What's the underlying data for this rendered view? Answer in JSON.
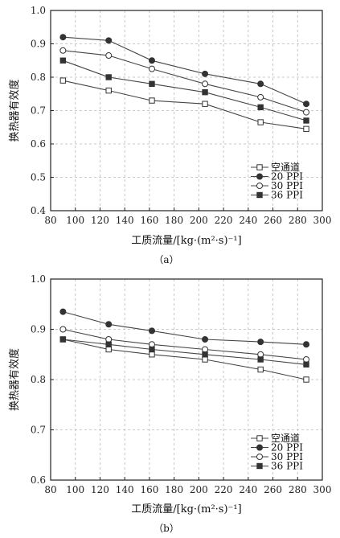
{
  "chart_data": [
    {
      "type": "line",
      "caption": "（a）",
      "xlabel": "工质流量/[kg·(m²·s)⁻¹]",
      "ylabel": "换热器有效度",
      "xlim": [
        80,
        300
      ],
      "ylim": [
        0.4,
        1.0
      ],
      "xticks": [
        80,
        100,
        120,
        140,
        160,
        180,
        200,
        220,
        240,
        260,
        280,
        300
      ],
      "yticks": [
        0.4,
        0.5,
        0.6,
        0.7,
        0.8,
        0.9,
        1.0
      ],
      "grid": true,
      "legend_position": "lower-right",
      "x": [
        90,
        127,
        162,
        205,
        250,
        287
      ],
      "series": [
        {
          "name": "空通道",
          "marker": "open-square",
          "values": [
            0.79,
            0.76,
            0.73,
            0.72,
            0.665,
            0.645
          ]
        },
        {
          "name": "20 PPI",
          "marker": "filled-circle",
          "values": [
            0.92,
            0.91,
            0.85,
            0.81,
            0.78,
            0.72
          ]
        },
        {
          "name": "30 PPI",
          "marker": "open-circle",
          "values": [
            0.88,
            0.865,
            0.825,
            0.78,
            0.74,
            0.695
          ]
        },
        {
          "name": "36 PPI",
          "marker": "filled-square",
          "values": [
            0.85,
            0.8,
            0.78,
            0.755,
            0.71,
            0.67
          ]
        }
      ]
    },
    {
      "type": "line",
      "caption": "（b）",
      "xlabel": "工质流量/[kg·(m²·s)⁻¹]",
      "ylabel": "换热器有效度",
      "xlim": [
        80,
        300
      ],
      "ylim": [
        0.6,
        1.0
      ],
      "xticks": [
        80,
        100,
        120,
        140,
        160,
        180,
        200,
        220,
        240,
        260,
        280,
        300
      ],
      "yticks": [
        0.6,
        0.7,
        0.8,
        0.9,
        1.0
      ],
      "grid": true,
      "legend_position": "lower-right",
      "x": [
        90,
        127,
        162,
        205,
        250,
        287
      ],
      "series": [
        {
          "name": "空通道",
          "marker": "open-square",
          "values": [
            0.88,
            0.86,
            0.85,
            0.84,
            0.82,
            0.8
          ]
        },
        {
          "name": "20 PPI",
          "marker": "filled-circle",
          "values": [
            0.935,
            0.91,
            0.897,
            0.88,
            0.875,
            0.87
          ]
        },
        {
          "name": "30 PPI",
          "marker": "open-circle",
          "values": [
            0.9,
            0.88,
            0.87,
            0.86,
            0.85,
            0.84
          ]
        },
        {
          "name": "36 PPI",
          "marker": "filled-square",
          "values": [
            0.88,
            0.87,
            0.86,
            0.85,
            0.84,
            0.83
          ]
        }
      ]
    }
  ]
}
